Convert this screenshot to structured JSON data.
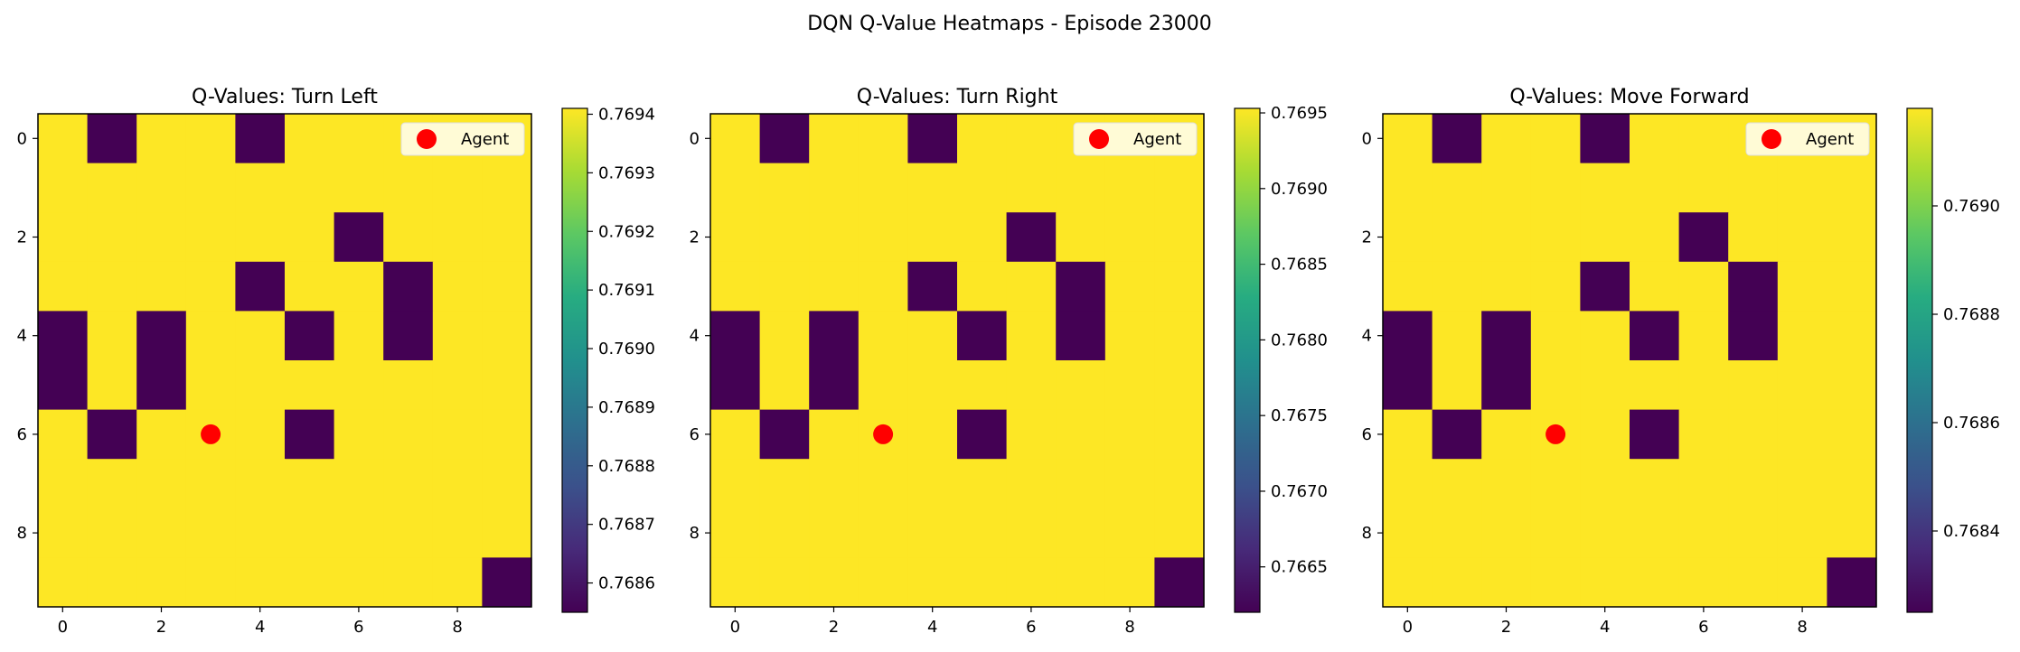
{
  "figure": {
    "suptitle": "DQN Q-Value Heatmaps - Episode 23000"
  },
  "chart_data": [
    {
      "type": "heatmap",
      "title": "Q-Values: Turn Left",
      "colormap": "viridis",
      "grid_size": [
        10,
        10
      ],
      "xticks": [
        0,
        2,
        4,
        6,
        8
      ],
      "yticks": [
        0,
        2,
        4,
        6,
        8
      ],
      "low_cells": [
        [
          0,
          1
        ],
        [
          0,
          4
        ],
        [
          2,
          6
        ],
        [
          3,
          4
        ],
        [
          3,
          7
        ],
        [
          4,
          0
        ],
        [
          4,
          2
        ],
        [
          4,
          5
        ],
        [
          4,
          7
        ],
        [
          5,
          0
        ],
        [
          5,
          2
        ],
        [
          6,
          1
        ],
        [
          6,
          5
        ],
        [
          9,
          9
        ]
      ],
      "high_value": 0.76941,
      "low_value": 0.76855,
      "colorbar": {
        "min": 0.76855,
        "max": 0.76941,
        "ticks": [
          0.7686,
          0.7687,
          0.7688,
          0.7689,
          0.769,
          0.7691,
          0.7692,
          0.7693,
          0.7694
        ],
        "tick_labels": [
          "0.7686",
          "0.7687",
          "0.7688",
          "0.7689",
          "0.7690",
          "0.7691",
          "0.7692",
          "0.7693",
          "0.7694"
        ]
      },
      "agent": {
        "x": 3,
        "y": 6,
        "color": "#ff0000",
        "label": "Agent"
      },
      "legend_position": "upper right"
    },
    {
      "type": "heatmap",
      "title": "Q-Values: Turn Right",
      "colormap": "viridis",
      "grid_size": [
        10,
        10
      ],
      "xticks": [
        0,
        2,
        4,
        6,
        8
      ],
      "yticks": [
        0,
        2,
        4,
        6,
        8
      ],
      "low_cells": [
        [
          0,
          1
        ],
        [
          0,
          4
        ],
        [
          2,
          6
        ],
        [
          3,
          4
        ],
        [
          3,
          7
        ],
        [
          4,
          0
        ],
        [
          4,
          2
        ],
        [
          4,
          5
        ],
        [
          4,
          7
        ],
        [
          5,
          0
        ],
        [
          5,
          2
        ],
        [
          6,
          1
        ],
        [
          6,
          5
        ],
        [
          9,
          9
        ]
      ],
      "high_value": 0.76953,
      "low_value": 0.7662,
      "colorbar": {
        "min": 0.7662,
        "max": 0.76953,
        "ticks": [
          0.7665,
          0.767,
          0.7675,
          0.768,
          0.7685,
          0.769,
          0.7695
        ],
        "tick_labels": [
          "0.7665",
          "0.7670",
          "0.7675",
          "0.7680",
          "0.7685",
          "0.7690",
          "0.7695"
        ]
      },
      "agent": {
        "x": 3,
        "y": 6,
        "color": "#ff0000",
        "label": "Agent"
      },
      "legend_position": "upper right"
    },
    {
      "type": "heatmap",
      "title": "Q-Values: Move Forward",
      "colormap": "viridis",
      "grid_size": [
        10,
        10
      ],
      "xticks": [
        0,
        2,
        4,
        6,
        8
      ],
      "yticks": [
        0,
        2,
        4,
        6,
        8
      ],
      "low_cells": [
        [
          0,
          1
        ],
        [
          0,
          4
        ],
        [
          2,
          6
        ],
        [
          3,
          4
        ],
        [
          3,
          7
        ],
        [
          4,
          0
        ],
        [
          4,
          2
        ],
        [
          4,
          5
        ],
        [
          4,
          7
        ],
        [
          5,
          0
        ],
        [
          5,
          2
        ],
        [
          6,
          1
        ],
        [
          6,
          5
        ],
        [
          9,
          9
        ]
      ],
      "high_value": 0.76918,
      "low_value": 0.76825,
      "colorbar": {
        "min": 0.76825,
        "max": 0.76918,
        "ticks": [
          0.7684,
          0.7686,
          0.7688,
          0.769
        ],
        "tick_labels": [
          "0.7684",
          "0.7686",
          "0.7688",
          "0.7690"
        ]
      },
      "agent": {
        "x": 3,
        "y": 6,
        "color": "#ff0000",
        "label": "Agent"
      },
      "legend_position": "upper right"
    }
  ],
  "colors": {
    "viridis_low": "#440154",
    "viridis_high": "#fde725",
    "legend_bg": "#fffbd6",
    "legend_border": "#dddddd"
  }
}
